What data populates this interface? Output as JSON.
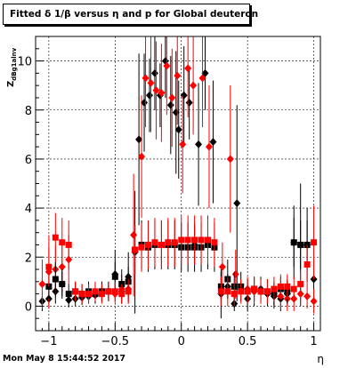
{
  "chart_data": {
    "type": "scatter",
    "title": "Fitted δ 1/β versus η and p for Global deuteron",
    "xlabel": "η",
    "ylabel": "z_{dBg1alnv}",
    "ylabel_main": "Z",
    "ylabel_sub": "dBg1alnv",
    "xlim": [
      -1.1,
      1.05
    ],
    "ylim": [
      -1.0,
      11.0
    ],
    "x_ticks": [
      -1,
      -0.5,
      0,
      0.5,
      1
    ],
    "x_tick_labels": [
      "−1",
      "−0.5",
      "0",
      "0.5",
      "1"
    ],
    "y_ticks": [
      0,
      2,
      4,
      6,
      8,
      10
    ],
    "y_tick_labels": [
      "0",
      "2",
      "4",
      "6",
      "8",
      "10"
    ],
    "grid": true,
    "series": [
      {
        "color": "#000000",
        "marker": "diamond",
        "points": [
          {
            "x": -1.05,
            "y": 0.2,
            "err": 0.4
          },
          {
            "x": -1.0,
            "y": 0.3,
            "err": 0.4
          },
          {
            "x": -0.95,
            "y": 0.6,
            "err": 0.5
          },
          {
            "x": -0.9,
            "y": 0.9,
            "err": 0.5
          },
          {
            "x": -0.85,
            "y": 0.25,
            "err": 0.3
          },
          {
            "x": -0.8,
            "y": 0.3,
            "err": 0.3
          },
          {
            "x": -0.75,
            "y": 0.35,
            "err": 0.3
          },
          {
            "x": -0.7,
            "y": 0.4,
            "err": 0.3
          },
          {
            "x": -0.65,
            "y": 0.45,
            "err": 0.3
          },
          {
            "x": -0.6,
            "y": 0.5,
            "err": 0.3
          },
          {
            "x": -0.55,
            "y": 0.6,
            "err": 0.3
          },
          {
            "x": -0.5,
            "y": 1.3,
            "err": 1.0
          },
          {
            "x": -0.45,
            "y": 0.6,
            "err": 0.5
          },
          {
            "x": -0.4,
            "y": 1.2,
            "err": 1.0
          },
          {
            "x": -0.35,
            "y": 2.2,
            "err": 2.5
          },
          {
            "x": -0.32,
            "y": 6.8,
            "err": 3.5
          },
          {
            "x": -0.28,
            "y": 8.3,
            "err": 2.0
          },
          {
            "x": -0.24,
            "y": 8.6,
            "err": 1.5
          },
          {
            "x": -0.2,
            "y": 9.5,
            "err": 1.5
          },
          {
            "x": -0.16,
            "y": 8.6,
            "err": 1.3
          },
          {
            "x": -0.12,
            "y": 10.0,
            "err": 1.5
          },
          {
            "x": -0.08,
            "y": 8.2,
            "err": 2.0
          },
          {
            "x": -0.04,
            "y": 7.9,
            "err": 2.5
          },
          {
            "x": -0.02,
            "y": 7.2,
            "err": 2.0
          },
          {
            "x": 0.02,
            "y": 8.6,
            "err": 2.0
          },
          {
            "x": 0.06,
            "y": 8.3,
            "err": 1.5
          },
          {
            "x": 0.1,
            "y": 2.5,
            "err": 0.8
          },
          {
            "x": 0.13,
            "y": 6.6,
            "err": 2.5
          },
          {
            "x": 0.18,
            "y": 9.5,
            "err": 1.5
          },
          {
            "x": 0.24,
            "y": 6.7,
            "err": 2.5
          },
          {
            "x": 0.3,
            "y": 0.5,
            "err": 1.0
          },
          {
            "x": 0.35,
            "y": 0.8,
            "err": 0.5
          },
          {
            "x": 0.4,
            "y": 0.1,
            "err": 0.3
          },
          {
            "x": 0.42,
            "y": 4.2,
            "err": 4.0
          },
          {
            "x": 0.5,
            "y": 0.3,
            "err": 0.5
          },
          {
            "x": 0.55,
            "y": 0.6,
            "err": 0.6
          },
          {
            "x": 0.6,
            "y": 0.7,
            "err": 0.5
          },
          {
            "x": 0.65,
            "y": 0.5,
            "err": 0.5
          },
          {
            "x": 0.7,
            "y": 0.4,
            "err": 0.5
          },
          {
            "x": 0.75,
            "y": 0.3,
            "err": 0.5
          },
          {
            "x": 0.8,
            "y": 0.5,
            "err": 0.5
          },
          {
            "x": 0.85,
            "y": 2.6,
            "err": 1.5
          },
          {
            "x": 0.9,
            "y": 2.5,
            "err": 2.5
          },
          {
            "x": 0.95,
            "y": 2.5,
            "err": 1.5
          },
          {
            "x": 1.0,
            "y": 1.1,
            "err": 0.8
          }
        ]
      },
      {
        "color": "#ff0000",
        "marker": "diamond",
        "points": [
          {
            "x": -1.05,
            "y": 0.9,
            "err": 1.0
          },
          {
            "x": -1.0,
            "y": 1.4,
            "err": 1.5
          },
          {
            "x": -0.95,
            "y": 1.5,
            "err": 1.0
          },
          {
            "x": -0.9,
            "y": 1.6,
            "err": 1.0
          },
          {
            "x": -0.85,
            "y": 1.9,
            "err": 1.0
          },
          {
            "x": -0.8,
            "y": 0.6,
            "err": 0.4
          },
          {
            "x": -0.75,
            "y": 0.5,
            "err": 0.4
          },
          {
            "x": -0.7,
            "y": 0.5,
            "err": 0.4
          },
          {
            "x": -0.65,
            "y": 0.5,
            "err": 0.4
          },
          {
            "x": -0.6,
            "y": 0.6,
            "err": 0.4
          },
          {
            "x": -0.55,
            "y": 0.6,
            "err": 0.4
          },
          {
            "x": -0.5,
            "y": 0.5,
            "err": 0.4
          },
          {
            "x": -0.45,
            "y": 0.7,
            "err": 0.6
          },
          {
            "x": -0.4,
            "y": 0.7,
            "err": 0.6
          },
          {
            "x": -0.36,
            "y": 2.9,
            "err": 2.5
          },
          {
            "x": -0.3,
            "y": 6.1,
            "err": 2.5
          },
          {
            "x": -0.27,
            "y": 9.3,
            "err": 2.0
          },
          {
            "x": -0.23,
            "y": 9.1,
            "err": 2.0
          },
          {
            "x": -0.19,
            "y": 8.8,
            "err": 2.0
          },
          {
            "x": -0.15,
            "y": 8.7,
            "err": 2.0
          },
          {
            "x": -0.11,
            "y": 9.8,
            "err": 2.0
          },
          {
            "x": -0.07,
            "y": 8.5,
            "err": 2.0
          },
          {
            "x": -0.03,
            "y": 9.4,
            "err": 2.0
          },
          {
            "x": 0.01,
            "y": 6.6,
            "err": 2.0
          },
          {
            "x": 0.05,
            "y": 9.7,
            "err": 2.0
          },
          {
            "x": 0.09,
            "y": 9.0,
            "err": 2.0
          },
          {
            "x": 0.16,
            "y": 9.3,
            "err": 2.0
          },
          {
            "x": 0.21,
            "y": 6.5,
            "err": 2.5
          },
          {
            "x": 0.31,
            "y": 1.6,
            "err": 1.0
          },
          {
            "x": 0.37,
            "y": 6.0,
            "err": 3.0
          },
          {
            "x": 0.41,
            "y": 1.3,
            "err": 1.0
          },
          {
            "x": 0.5,
            "y": 0.7,
            "err": 0.5
          },
          {
            "x": 0.55,
            "y": 0.6,
            "err": 0.5
          },
          {
            "x": 0.6,
            "y": 0.6,
            "err": 0.5
          },
          {
            "x": 0.65,
            "y": 0.6,
            "err": 0.5
          },
          {
            "x": 0.7,
            "y": 0.5,
            "err": 0.5
          },
          {
            "x": 0.75,
            "y": 0.4,
            "err": 0.5
          },
          {
            "x": 0.8,
            "y": 0.3,
            "err": 0.5
          },
          {
            "x": 0.85,
            "y": 0.3,
            "err": 0.5
          },
          {
            "x": 0.9,
            "y": 0.5,
            "err": 0.5
          },
          {
            "x": 0.95,
            "y": 0.4,
            "err": 0.5
          },
          {
            "x": 1.0,
            "y": 0.2,
            "err": 0.5
          }
        ]
      },
      {
        "color": "#000000",
        "marker": "square",
        "points": [
          {
            "x": -1.0,
            "y": 0.8,
            "err": 0.5
          },
          {
            "x": -0.95,
            "y": 1.1,
            "err": 0.7
          },
          {
            "x": -0.9,
            "y": 0.9,
            "err": 0.6
          },
          {
            "x": -0.85,
            "y": 0.5,
            "err": 0.4
          },
          {
            "x": -0.8,
            "y": 0.6,
            "err": 0.4
          },
          {
            "x": -0.75,
            "y": 0.5,
            "err": 0.4
          },
          {
            "x": -0.7,
            "y": 0.6,
            "err": 0.4
          },
          {
            "x": -0.65,
            "y": 0.5,
            "err": 0.4
          },
          {
            "x": -0.6,
            "y": 0.6,
            "err": 0.4
          },
          {
            "x": -0.55,
            "y": 0.6,
            "err": 0.4
          },
          {
            "x": -0.5,
            "y": 1.2,
            "err": 0.6
          },
          {
            "x": -0.45,
            "y": 0.9,
            "err": 0.6
          },
          {
            "x": -0.4,
            "y": 1.0,
            "err": 0.6
          },
          {
            "x": -0.35,
            "y": 2.3,
            "err": 1.0
          },
          {
            "x": -0.3,
            "y": 2.5,
            "err": 1.0
          },
          {
            "x": -0.25,
            "y": 2.4,
            "err": 1.0
          },
          {
            "x": -0.2,
            "y": 2.5,
            "err": 1.0
          },
          {
            "x": -0.15,
            "y": 2.5,
            "err": 1.0
          },
          {
            "x": -0.1,
            "y": 2.5,
            "err": 1.0
          },
          {
            "x": -0.05,
            "y": 2.5,
            "err": 1.0
          },
          {
            "x": 0.0,
            "y": 2.4,
            "err": 1.0
          },
          {
            "x": 0.05,
            "y": 2.4,
            "err": 1.0
          },
          {
            "x": 0.1,
            "y": 2.4,
            "err": 1.0
          },
          {
            "x": 0.15,
            "y": 2.4,
            "err": 1.0
          },
          {
            "x": 0.2,
            "y": 2.5,
            "err": 1.0
          },
          {
            "x": 0.25,
            "y": 2.4,
            "err": 1.0
          },
          {
            "x": 0.3,
            "y": 0.8,
            "err": 0.6
          },
          {
            "x": 0.35,
            "y": 1.1,
            "err": 0.8
          },
          {
            "x": 0.4,
            "y": 0.8,
            "err": 0.6
          },
          {
            "x": 0.45,
            "y": 0.8,
            "err": 0.6
          },
          {
            "x": 0.5,
            "y": 0.6,
            "err": 0.5
          },
          {
            "x": 0.55,
            "y": 0.7,
            "err": 0.5
          },
          {
            "x": 0.6,
            "y": 0.6,
            "err": 0.5
          },
          {
            "x": 0.65,
            "y": 0.6,
            "err": 0.5
          },
          {
            "x": 0.7,
            "y": 0.5,
            "err": 0.5
          },
          {
            "x": 0.75,
            "y": 0.7,
            "err": 0.5
          },
          {
            "x": 0.8,
            "y": 0.6,
            "err": 0.5
          },
          {
            "x": 0.85,
            "y": 2.6,
            "err": 1.0
          },
          {
            "x": 0.9,
            "y": 2.5,
            "err": 1.0
          },
          {
            "x": 0.95,
            "y": 2.5,
            "err": 1.0
          }
        ]
      },
      {
        "color": "#ff0000",
        "marker": "square",
        "points": [
          {
            "x": -1.0,
            "y": 1.6,
            "err": 0.8
          },
          {
            "x": -0.95,
            "y": 2.8,
            "err": 1.0
          },
          {
            "x": -0.9,
            "y": 2.6,
            "err": 1.0
          },
          {
            "x": -0.85,
            "y": 2.5,
            "err": 1.0
          },
          {
            "x": -0.8,
            "y": 0.6,
            "err": 0.4
          },
          {
            "x": -0.75,
            "y": 0.5,
            "err": 0.4
          },
          {
            "x": -0.7,
            "y": 0.5,
            "err": 0.4
          },
          {
            "x": -0.65,
            "y": 0.6,
            "err": 0.4
          },
          {
            "x": -0.6,
            "y": 0.5,
            "err": 0.4
          },
          {
            "x": -0.55,
            "y": 0.6,
            "err": 0.4
          },
          {
            "x": -0.5,
            "y": 0.6,
            "err": 0.4
          },
          {
            "x": -0.45,
            "y": 0.5,
            "err": 0.4
          },
          {
            "x": -0.4,
            "y": 0.6,
            "err": 0.5
          },
          {
            "x": -0.35,
            "y": 2.3,
            "err": 1.0
          },
          {
            "x": -0.3,
            "y": 2.4,
            "err": 1.0
          },
          {
            "x": -0.25,
            "y": 2.5,
            "err": 1.0
          },
          {
            "x": -0.2,
            "y": 2.6,
            "err": 1.0
          },
          {
            "x": -0.15,
            "y": 2.5,
            "err": 1.0
          },
          {
            "x": -0.1,
            "y": 2.6,
            "err": 1.0
          },
          {
            "x": -0.05,
            "y": 2.6,
            "err": 1.0
          },
          {
            "x": 0.0,
            "y": 2.7,
            "err": 1.0
          },
          {
            "x": 0.05,
            "y": 2.7,
            "err": 1.0
          },
          {
            "x": 0.1,
            "y": 2.7,
            "err": 1.0
          },
          {
            "x": 0.15,
            "y": 2.7,
            "err": 1.0
          },
          {
            "x": 0.2,
            "y": 2.7,
            "err": 1.0
          },
          {
            "x": 0.25,
            "y": 2.6,
            "err": 1.0
          },
          {
            "x": 0.3,
            "y": 0.6,
            "err": 0.6
          },
          {
            "x": 0.35,
            "y": 0.6,
            "err": 0.6
          },
          {
            "x": 0.4,
            "y": 0.5,
            "err": 0.5
          },
          {
            "x": 0.45,
            "y": 0.6,
            "err": 0.5
          },
          {
            "x": 0.5,
            "y": 0.6,
            "err": 0.5
          },
          {
            "x": 0.55,
            "y": 0.7,
            "err": 0.5
          },
          {
            "x": 0.6,
            "y": 0.6,
            "err": 0.5
          },
          {
            "x": 0.65,
            "y": 0.6,
            "err": 0.5
          },
          {
            "x": 0.7,
            "y": 0.7,
            "err": 0.5
          },
          {
            "x": 0.75,
            "y": 0.8,
            "err": 0.5
          },
          {
            "x": 0.8,
            "y": 0.8,
            "err": 0.5
          },
          {
            "x": 0.85,
            "y": 0.7,
            "err": 0.5
          },
          {
            "x": 0.9,
            "y": 0.9,
            "err": 0.5
          },
          {
            "x": 0.95,
            "y": 1.7,
            "err": 0.8
          },
          {
            "x": 1.0,
            "y": 2.6,
            "err": 1.5
          }
        ]
      }
    ]
  },
  "footer": {
    "timestamp": "Mon May  8 15:44:52 2017"
  }
}
